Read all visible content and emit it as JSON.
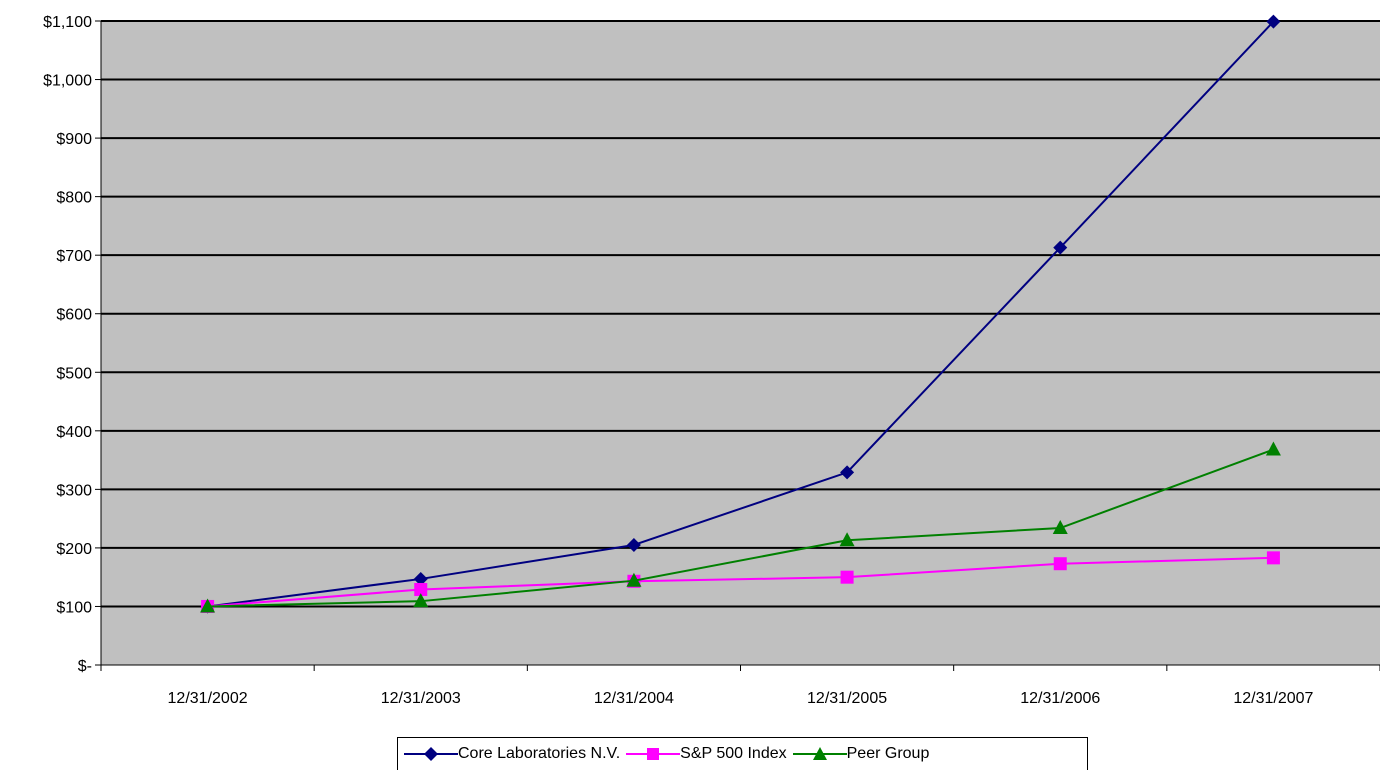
{
  "chart_data": {
    "type": "line",
    "categories": [
      "12/31/2002",
      "12/31/2003",
      "12/31/2004",
      "12/31/2005",
      "12/31/2006",
      "12/31/2007"
    ],
    "series": [
      {
        "name": "Core Laboratories N.V.",
        "values": [
          100,
          147,
          205,
          329,
          713,
          1099
        ],
        "color": "#000080",
        "marker": "diamond"
      },
      {
        "name": "S&P 500 Index",
        "values": [
          100,
          129,
          143,
          150,
          173,
          183
        ],
        "color": "#ff00ff",
        "marker": "square"
      },
      {
        "name": "Peer Group",
        "values": [
          100,
          109,
          144,
          213,
          234,
          368
        ],
        "color": "#008000",
        "marker": "triangle"
      }
    ],
    "yticks": [
      "$-",
      "$100",
      "$200",
      "$300",
      "$400",
      "$500",
      "$600",
      "$700",
      "$800",
      "$900",
      "$1,000",
      "$1,100"
    ],
    "ylim": [
      0,
      1100
    ],
    "title": "",
    "xlabel": "",
    "ylabel": "",
    "grid": true,
    "plot_background": "#c0c0c0",
    "legend_position": "bottom"
  }
}
